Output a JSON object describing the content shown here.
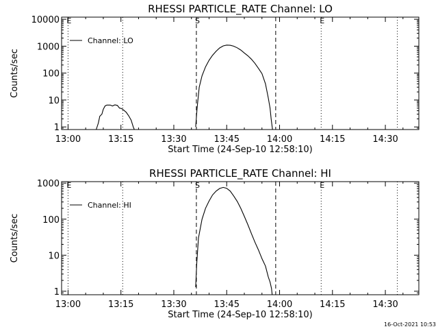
{
  "timestamp": "16-Oct-2021 10:53",
  "chart_data": [
    {
      "type": "line",
      "title": "RHESSI PARTICLE_RATE Channel: LO",
      "xlabel": "Start Time (24-Sep-10 12:58:10)",
      "ylabel": "Counts/sec",
      "legend": "Channel: LO",
      "legend_position": "top-left",
      "xlim_minutes": [
        778.17,
        879.5
      ],
      "ylim": [
        0.8,
        12000
      ],
      "x_ticks": [
        {
          "m": 780,
          "label": "13:00"
        },
        {
          "m": 795,
          "label": "13:15"
        },
        {
          "m": 810,
          "label": "13:30"
        },
        {
          "m": 825,
          "label": "13:45"
        },
        {
          "m": 840,
          "label": "14:00"
        },
        {
          "m": 855,
          "label": "14:15"
        },
        {
          "m": 870,
          "label": "14:30"
        }
      ],
      "y_ticks": [
        {
          "v": 1,
          "label": "1"
        },
        {
          "v": 10,
          "label": "10"
        },
        {
          "v": 100,
          "label": "100"
        },
        {
          "v": 1000,
          "label": "1000"
        },
        {
          "v": 10000,
          "label": "10000"
        }
      ],
      "markers": [
        {
          "m": 780,
          "label": "E",
          "style": "dotted"
        },
        {
          "m": 795.5,
          "label": "",
          "style": "dotted"
        },
        {
          "m": 816.4,
          "label": "S",
          "style": "dashed"
        },
        {
          "m": 838.9,
          "label": "",
          "style": "dashed"
        },
        {
          "m": 851.8,
          "label": "E",
          "style": "dotted"
        },
        {
          "m": 873.4,
          "label": "",
          "style": "dotted"
        }
      ],
      "series": [
        {
          "name": "Channel: LO",
          "x": [
            788.0,
            788.6,
            789.0,
            789.6,
            790.0,
            790.5,
            791.0,
            792.0,
            792.6,
            793.3,
            794.0,
            794.6,
            795.2,
            795.8,
            796.5,
            797.2,
            797.9,
            798.5,
            798.8
          ],
          "y": [
            0.8,
            1.4,
            2.5,
            3.0,
            4.5,
            6.0,
            6.5,
            6.5,
            6.0,
            6.6,
            6.3,
            5.0,
            4.8,
            4.2,
            3.5,
            2.6,
            1.8,
            1.0,
            0.8
          ]
        },
        {
          "name": "Channel: LO",
          "x": [
            816.2,
            816.6,
            817.2,
            818.0,
            819.0,
            820.0,
            821.0,
            822.0,
            823.0,
            824.0,
            825.0,
            826.0,
            827.0,
            828.0,
            829.0,
            830.0,
            831.0,
            832.0,
            833.0,
            834.0,
            835.0,
            836.0,
            836.8,
            837.3,
            837.6,
            837.9,
            838.0
          ],
          "y": [
            1.0,
            5.0,
            30,
            80,
            170,
            300,
            460,
            650,
            860,
            1020,
            1100,
            1080,
            1000,
            870,
            720,
            560,
            440,
            330,
            230,
            150,
            95,
            40,
            12,
            5,
            2,
            1.0,
            0.8
          ]
        }
      ]
    },
    {
      "type": "line",
      "title": "RHESSI PARTICLE_RATE Channel: HI",
      "xlabel": "Start Time (24-Sep-10 12:58:10)",
      "ylabel": "Counts/sec",
      "legend": "Channel: HI",
      "legend_position": "top-left",
      "xlim_minutes": [
        778.17,
        879.5
      ],
      "ylim": [
        0.8,
        1100
      ],
      "x_ticks": [
        {
          "m": 780,
          "label": "13:00"
        },
        {
          "m": 795,
          "label": "13:15"
        },
        {
          "m": 810,
          "label": "13:30"
        },
        {
          "m": 825,
          "label": "13:45"
        },
        {
          "m": 840,
          "label": "14:00"
        },
        {
          "m": 855,
          "label": "14:15"
        },
        {
          "m": 870,
          "label": "14:30"
        }
      ],
      "y_ticks": [
        {
          "v": 1,
          "label": "1"
        },
        {
          "v": 10,
          "label": "10"
        },
        {
          "v": 100,
          "label": "100"
        },
        {
          "v": 1000,
          "label": "1000"
        }
      ],
      "markers": [
        {
          "m": 780,
          "label": "E",
          "style": "dotted"
        },
        {
          "m": 795.5,
          "label": "",
          "style": "dotted"
        },
        {
          "m": 816.4,
          "label": "S",
          "style": "dashed"
        },
        {
          "m": 838.9,
          "label": "",
          "style": "dashed"
        },
        {
          "m": 851.8,
          "label": "E",
          "style": "dotted"
        },
        {
          "m": 873.4,
          "label": "",
          "style": "dotted"
        }
      ],
      "series": [
        {
          "name": "Channel: HI",
          "x": [
            816.2,
            816.5,
            817.0,
            818.0,
            819.0,
            820.0,
            821.0,
            822.0,
            823.0,
            824.0,
            825.0,
            826.0,
            827.0,
            828.0,
            829.0,
            830.0,
            831.0,
            832.0,
            833.0,
            834.0,
            835.0,
            836.0,
            836.8,
            837.3,
            837.7,
            837.9
          ],
          "y": [
            1.3,
            6.0,
            30,
            100,
            200,
            320,
            470,
            600,
            710,
            760,
            720,
            600,
            440,
            310,
            200,
            120,
            70,
            40,
            23,
            14,
            8.0,
            5.0,
            2.5,
            1.8,
            1.2,
            0.8
          ]
        }
      ]
    }
  ]
}
